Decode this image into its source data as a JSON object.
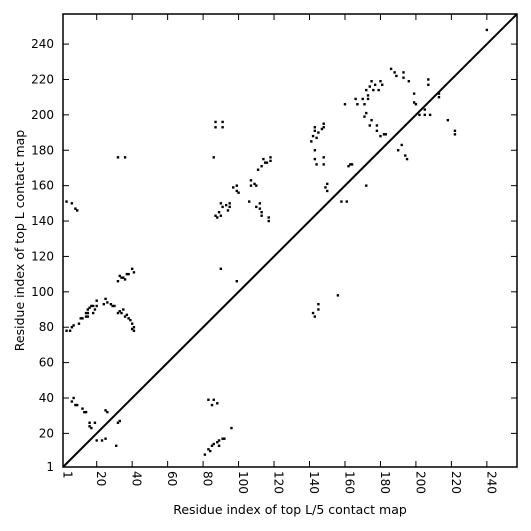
{
  "chart_data": {
    "type": "scatter",
    "title": "",
    "xlabel": "Residue index of top L/5 contact map",
    "ylabel": "Residue index of top L contact map",
    "xlim": [
      1,
      257
    ],
    "ylim": [
      1,
      257
    ],
    "grid": false,
    "xticks": [
      1,
      20,
      40,
      60,
      80,
      100,
      120,
      140,
      160,
      180,
      200,
      220,
      240
    ],
    "yticks": [
      1,
      20,
      40,
      60,
      80,
      100,
      120,
      140,
      160,
      180,
      200,
      220,
      240
    ],
    "diagonal": {
      "from": [
        1,
        1
      ],
      "to": [
        257,
        257
      ]
    },
    "series": [
      {
        "name": "",
        "color": "#000000",
        "points": [
          [
            6,
            38
          ],
          [
            7,
            40
          ],
          [
            8,
            36
          ],
          [
            9,
            36
          ],
          [
            12,
            34
          ],
          [
            13,
            32
          ],
          [
            14,
            32
          ],
          [
            16,
            24
          ],
          [
            16,
            26
          ],
          [
            17,
            23
          ],
          [
            19,
            26
          ],
          [
            20,
            16
          ],
          [
            23,
            16
          ],
          [
            25,
            17
          ],
          [
            25,
            33
          ],
          [
            26,
            32
          ],
          [
            31,
            13
          ],
          [
            32,
            26
          ],
          [
            33,
            27
          ],
          [
            83,
            39
          ],
          [
            85,
            36
          ],
          [
            86,
            39
          ],
          [
            88,
            37
          ],
          [
            84,
            10
          ],
          [
            85,
            13
          ],
          [
            86,
            14
          ],
          [
            88,
            15
          ],
          [
            89,
            13
          ],
          [
            89,
            16
          ],
          [
            91,
            17
          ],
          [
            92,
            17
          ],
          [
            96,
            23
          ],
          [
            81,
            8
          ],
          [
            83,
            11
          ],
          [
            3,
            151
          ],
          [
            6,
            150
          ],
          [
            8,
            147
          ],
          [
            9,
            146
          ],
          [
            32,
            176
          ],
          [
            36,
            176
          ],
          [
            3,
            78
          ],
          [
            5,
            78
          ],
          [
            6,
            80
          ],
          [
            7,
            81
          ],
          [
            10,
            82
          ],
          [
            11,
            85
          ],
          [
            12,
            85
          ],
          [
            14,
            86
          ],
          [
            14,
            88
          ],
          [
            15,
            86
          ],
          [
            15,
            88
          ],
          [
            15,
            90
          ],
          [
            16,
            91
          ],
          [
            17,
            92
          ],
          [
            18,
            92
          ],
          [
            18,
            88
          ],
          [
            19,
            90
          ],
          [
            20,
            92
          ],
          [
            20,
            95
          ],
          [
            24,
            93
          ],
          [
            25,
            96
          ],
          [
            26,
            94
          ],
          [
            28,
            93
          ],
          [
            29,
            92
          ],
          [
            30,
            92
          ],
          [
            32,
            88
          ],
          [
            33,
            89
          ],
          [
            34,
            88
          ],
          [
            35,
            90
          ],
          [
            36,
            86
          ],
          [
            37,
            87
          ],
          [
            38,
            85
          ],
          [
            39,
            84
          ],
          [
            40,
            82
          ],
          [
            40,
            79
          ],
          [
            41,
            78
          ],
          [
            41,
            80
          ],
          [
            32,
            106
          ],
          [
            33,
            109
          ],
          [
            34,
            108
          ],
          [
            35,
            108
          ],
          [
            36,
            107
          ],
          [
            37,
            110
          ],
          [
            38,
            110
          ],
          [
            40,
            113
          ],
          [
            41,
            111
          ],
          [
            86,
            176
          ],
          [
            87,
            196
          ],
          [
            87,
            193
          ],
          [
            91,
            196
          ],
          [
            91,
            193
          ],
          [
            87,
            143
          ],
          [
            88,
            142
          ],
          [
            89,
            145
          ],
          [
            90,
            143
          ],
          [
            90,
            150
          ],
          [
            91,
            148
          ],
          [
            93,
            149
          ],
          [
            94,
            146
          ],
          [
            95,
            150
          ],
          [
            95,
            148
          ],
          [
            90,
            113
          ],
          [
            99,
            106
          ],
          [
            97,
            159
          ],
          [
            99,
            160
          ],
          [
            99,
            157
          ],
          [
            100,
            156
          ],
          [
            106,
            151
          ],
          [
            107,
            160
          ],
          [
            107,
            163
          ],
          [
            109,
            161
          ],
          [
            110,
            160
          ],
          [
            110,
            148
          ],
          [
            112,
            147
          ],
          [
            112,
            150
          ],
          [
            113,
            145
          ],
          [
            113,
            143
          ],
          [
            114,
            175
          ],
          [
            115,
            173
          ],
          [
            116,
            173
          ],
          [
            117,
            142
          ],
          [
            117,
            140
          ],
          [
            118,
            176
          ],
          [
            118,
            174
          ],
          [
            111,
            169
          ],
          [
            113,
            171
          ],
          [
            141,
            185
          ],
          [
            142,
            188
          ],
          [
            143,
            191
          ],
          [
            143,
            193
          ],
          [
            144,
            187
          ],
          [
            145,
            190
          ],
          [
            147,
            192
          ],
          [
            148,
            195
          ],
          [
            148,
            193
          ],
          [
            143,
            180
          ],
          [
            143,
            175
          ],
          [
            144,
            172
          ],
          [
            148,
            176
          ],
          [
            148,
            172
          ],
          [
            145,
            90
          ],
          [
            145,
            93
          ],
          [
            142,
            88
          ],
          [
            143,
            86
          ],
          [
            149,
            159
          ],
          [
            150,
            157
          ],
          [
            150,
            161
          ],
          [
            156,
            98
          ],
          [
            158,
            151
          ],
          [
            161,
            151
          ],
          [
            160,
            206
          ],
          [
            162,
            171
          ],
          [
            163,
            172
          ],
          [
            164,
            172
          ],
          [
            166,
            209
          ],
          [
            167,
            206
          ],
          [
            170,
            209
          ],
          [
            171,
            206
          ],
          [
            171,
            199
          ],
          [
            172,
            201
          ],
          [
            173,
            209
          ],
          [
            172,
            214
          ],
          [
            173,
            211
          ],
          [
            174,
            194
          ],
          [
            175,
            197
          ],
          [
            174,
            216
          ],
          [
            175,
            219
          ],
          [
            176,
            214
          ],
          [
            177,
            217
          ],
          [
            178,
            191
          ],
          [
            178,
            194
          ],
          [
            179,
            214
          ],
          [
            180,
            219
          ],
          [
            181,
            217
          ],
          [
            180,
            188
          ],
          [
            182,
            189
          ],
          [
            183,
            189
          ],
          [
            172,
            160
          ],
          [
            186,
            226
          ],
          [
            188,
            224
          ],
          [
            189,
            222
          ],
          [
            190,
            180
          ],
          [
            192,
            183
          ],
          [
            193,
            224
          ],
          [
            193,
            221
          ],
          [
            194,
            177
          ],
          [
            195,
            175
          ],
          [
            196,
            219
          ],
          [
            199,
            212
          ],
          [
            199,
            207
          ],
          [
            200,
            206
          ],
          [
            202,
            200
          ],
          [
            205,
            203
          ],
          [
            205,
            200
          ],
          [
            207,
            217
          ],
          [
            207,
            220
          ],
          [
            208,
            200
          ],
          [
            213,
            210
          ],
          [
            213,
            212
          ],
          [
            218,
            197
          ],
          [
            222,
            189
          ],
          [
            222,
            191
          ],
          [
            240,
            248
          ]
        ]
      }
    ]
  }
}
